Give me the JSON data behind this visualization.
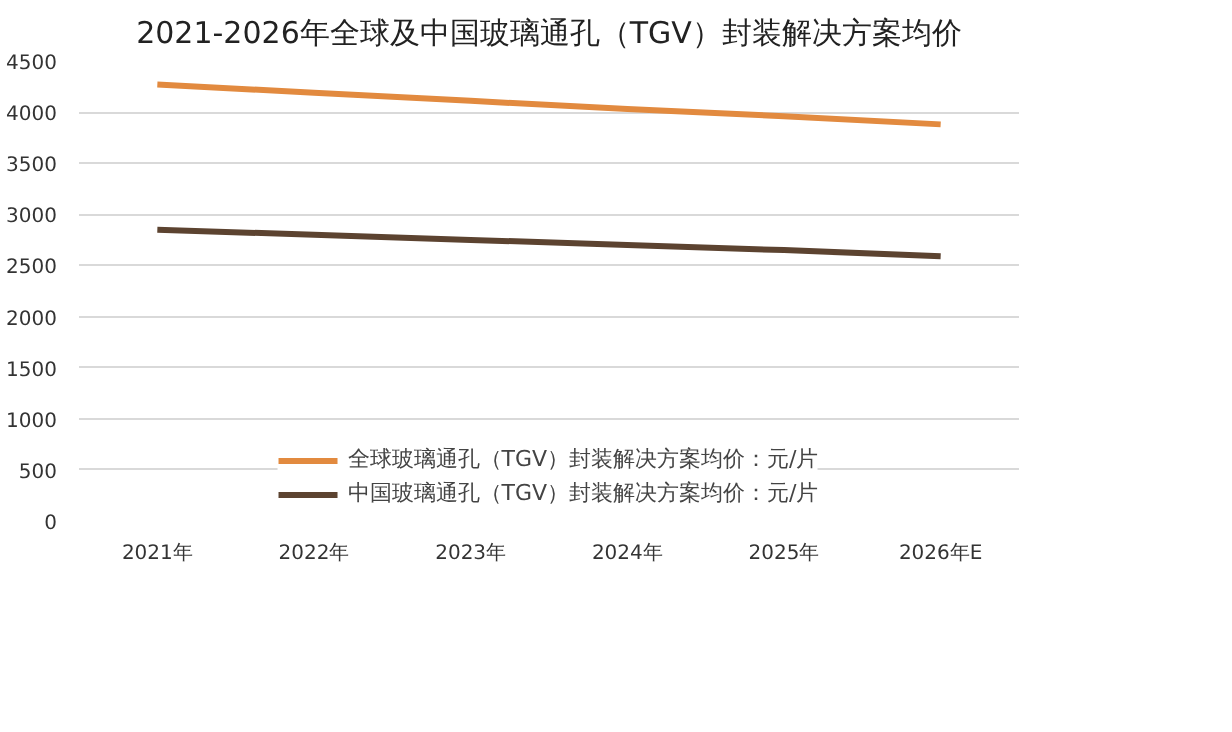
{
  "chart_data": {
    "type": "line",
    "title": "2021-2026年全球及中国玻璃通孔（TGV）封装解决方案均价",
    "categories": [
      "2021年",
      "2022年",
      "2023年",
      "2024年",
      "2025年",
      "2026年E"
    ],
    "series": [
      {
        "name": "全球玻璃通孔（TGV）封装解决方案均价：元/片",
        "color": "#e28a3f",
        "values": [
          4270,
          4190,
          4110,
          4030,
          3960,
          3880
        ]
      },
      {
        "name": "中国玻璃通孔（TGV）封装解决方案均价：元/片",
        "color": "#5c4330",
        "values": [
          2850,
          2800,
          2750,
          2700,
          2650,
          2590
        ]
      }
    ],
    "ylim": [
      0,
      4500
    ],
    "yticks": [
      0,
      500,
      1000,
      1500,
      2000,
      2500,
      3000,
      3500,
      4000,
      4500
    ],
    "grid": "y",
    "legend": "bottom",
    "marker": "none",
    "line_style": "solid"
  }
}
